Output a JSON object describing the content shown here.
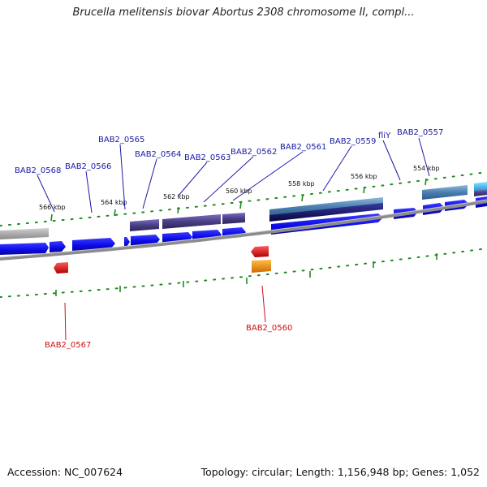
{
  "title": "Brucella melitensis biovar Abortus 2308 chromosome II, compl...",
  "footer": {
    "accession": "Accession: NC_007624",
    "summary": "Topology: circular; Length: 1,156,948 bp; Genes: 1,052"
  },
  "ruler_labels": [
    "566 kbp",
    "564 kbp",
    "562 kbp",
    "560 kbp",
    "558 kbp",
    "556 kbp",
    "554 kbp"
  ],
  "gene_labels_top": [
    "BAB2_0568",
    "BAB2_0566",
    "BAB2_0565",
    "BAB2_0564",
    "BAB2_0563",
    "BAB2_0562",
    "BAB2_0561",
    "BAB2_0559",
    "fliY",
    "BAB2_0557"
  ],
  "gene_labels_bottom": [
    "BAB2_0567",
    "BAB2_0560"
  ],
  "colors": {
    "forward_gene": "#0a0ae6",
    "reverse_gene": "#e00000",
    "orange_feature": "#f08c00",
    "backbone": "#8c8c8c",
    "ticks": "#1f8a1f",
    "purple_feature": "#4a3f86",
    "steelblue_feature": "#4a7fb0",
    "navy_feature": "#0c0c6a",
    "cyan_feature": "#22b2e6",
    "grey_feature": "#a8a8a8"
  }
}
